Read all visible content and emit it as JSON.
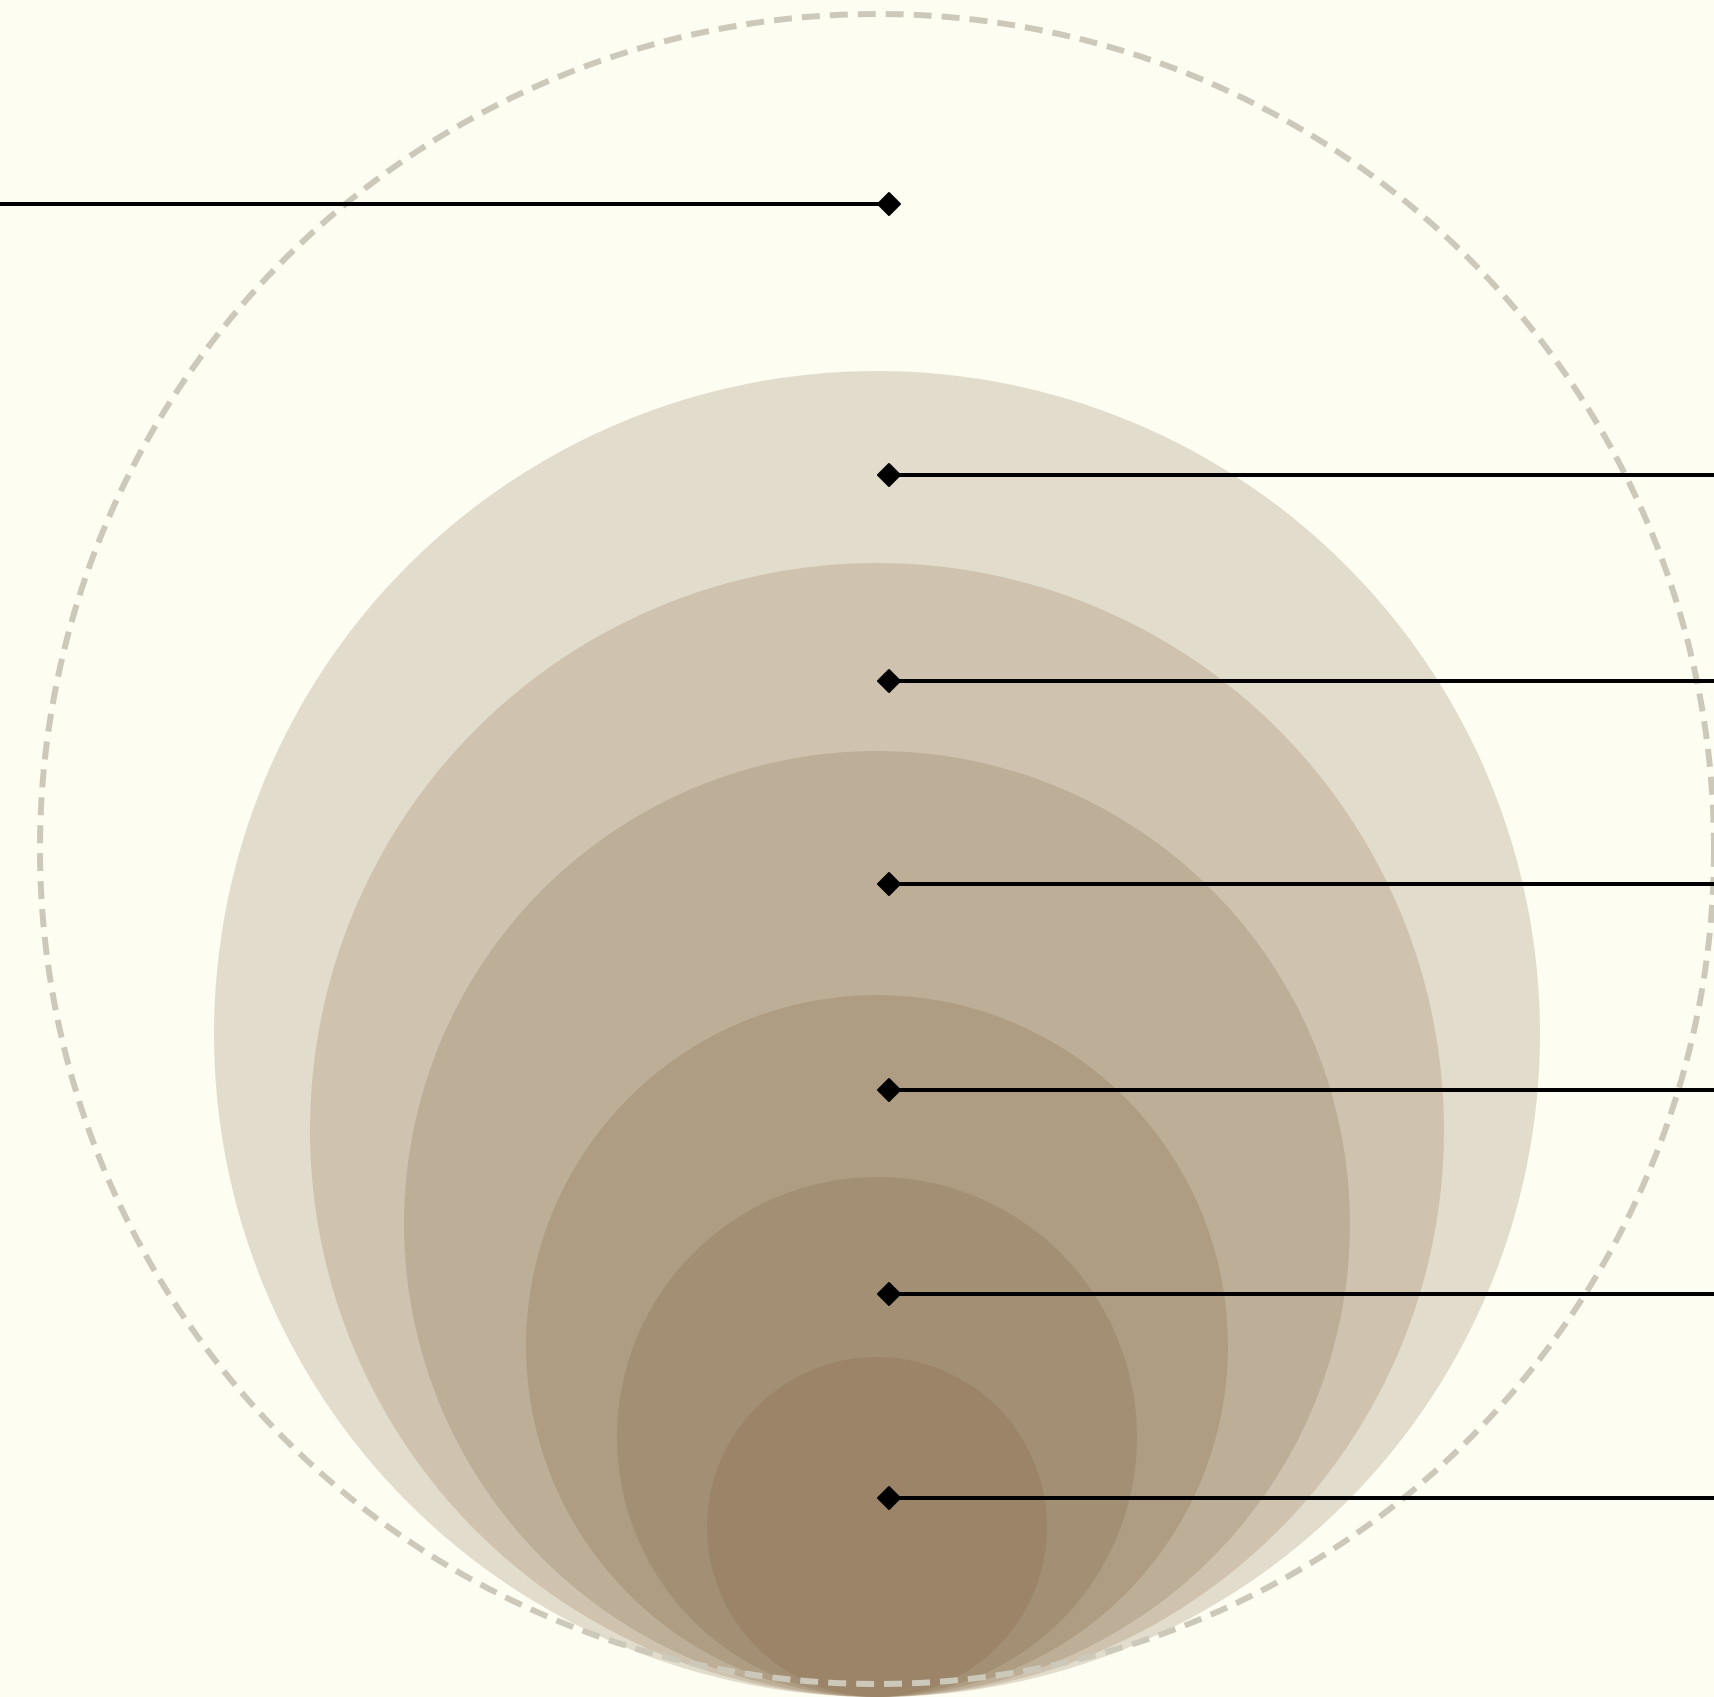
{
  "diagram": {
    "type": "nested-circles-with-leader-lines",
    "background_color": "#fefdf1",
    "outline_circle": {
      "stroke_color": "#ccc9bb",
      "style": "dashed"
    },
    "nested_circles": [
      {
        "level": 1,
        "color": "#e2dccc",
        "label": ""
      },
      {
        "level": 2,
        "color": "#cfc3af",
        "label": ""
      },
      {
        "level": 3,
        "color": "#bdae97",
        "label": ""
      },
      {
        "level": 4,
        "color": "#af9d83",
        "label": ""
      },
      {
        "level": 5,
        "color": "#a38f74",
        "label": ""
      },
      {
        "level": 6,
        "color": "#9b8468",
        "label": ""
      }
    ],
    "outline_leader": {
      "direction": "left",
      "label": ""
    },
    "leader_color": "#000000",
    "marker_shape": "diamond"
  }
}
